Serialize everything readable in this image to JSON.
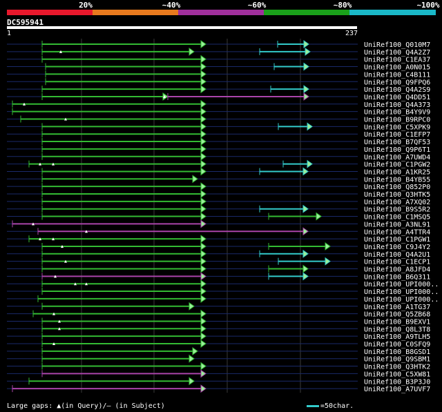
{
  "legend": [
    {
      "label": "20%",
      "color": "#e8182c"
    },
    {
      "label": "~40%",
      "color": "#e87a1e"
    },
    {
      "label": "~60%",
      "color": "#a0309c"
    },
    {
      "label": "~80%",
      "color": "#1aa01a"
    },
    {
      "label": "~100%",
      "color": "#1ab8c8"
    }
  ],
  "query": {
    "id": "DC595941",
    "start": "1",
    "end": "237"
  },
  "colors": {
    "green": "#33bb33",
    "purple": "#aa44aa",
    "cyan": "#33cccc",
    "arrow_fill": "#99ee99",
    "row_line": "#1a2a6a",
    "grid": "#3a3a3a"
  },
  "hits": [
    {
      "label": "UniRef100_Q010M7",
      "segs": [
        {
          "s": 61,
          "e": 298,
          "c": "green"
        },
        {
          "s": 402,
          "e": 447,
          "c": "cyan"
        }
      ],
      "marks": []
    },
    {
      "label": "UniRef100_Q4A2Z7",
      "segs": [
        {
          "s": 61,
          "e": 281,
          "c": "green"
        },
        {
          "s": 376,
          "e": 449,
          "c": "cyan"
        }
      ],
      "marks": [
        {
          "x": 88
        }
      ]
    },
    {
      "label": "UniRef100_C1EA37",
      "segs": [
        {
          "s": 61,
          "e": 298,
          "c": "green"
        }
      ],
      "marks": []
    },
    {
      "label": "UniRef100_A0N015",
      "segs": [
        {
          "s": 66,
          "e": 298,
          "c": "green"
        },
        {
          "s": 397,
          "e": 447,
          "c": "cyan"
        }
      ],
      "marks": []
    },
    {
      "label": "UniRef100_C4B111",
      "segs": [
        {
          "s": 66,
          "e": 298,
          "c": "green"
        }
      ],
      "marks": []
    },
    {
      "label": "UniRef100_Q9FPQ6",
      "segs": [
        {
          "s": 66,
          "e": 298,
          "c": "green"
        }
      ],
      "marks": []
    },
    {
      "label": "UniRef100_Q4A2S9",
      "segs": [
        {
          "s": 61,
          "e": 298,
          "c": "green"
        },
        {
          "s": 392,
          "e": 447,
          "c": "cyan"
        }
      ],
      "marks": []
    },
    {
      "label": "UniRef100_Q4DD51",
      "segs": [
        {
          "s": 61,
          "e": 243,
          "c": "green"
        },
        {
          "s": 243,
          "e": 447,
          "c": "purple"
        }
      ],
      "marks": [
        {
          "x": 238
        }
      ]
    },
    {
      "label": "UniRef100_Q4A373",
      "segs": [
        {
          "s": 18,
          "e": 298,
          "c": "green"
        }
      ],
      "marks": [
        {
          "x": 35
        }
      ]
    },
    {
      "label": "UniRef100_B4Y9V9",
      "segs": [
        {
          "s": 18,
          "e": 298,
          "c": "green"
        }
      ],
      "marks": []
    },
    {
      "label": "UniRef100_B9RPC0",
      "segs": [
        {
          "s": 30,
          "e": 298,
          "c": "green"
        }
      ],
      "marks": [
        {
          "x": 95
        }
      ]
    },
    {
      "label": "UniRef100_C5XPK9",
      "segs": [
        {
          "s": 61,
          "e": 298,
          "c": "green"
        },
        {
          "s": 403,
          "e": 452,
          "c": "cyan"
        }
      ],
      "marks": []
    },
    {
      "label": "UniRef100_C1EFP7",
      "segs": [
        {
          "s": 61,
          "e": 298,
          "c": "green"
        }
      ],
      "marks": []
    },
    {
      "label": "UniRef100_B7QF53",
      "segs": [
        {
          "s": 61,
          "e": 298,
          "c": "green"
        }
      ],
      "marks": []
    },
    {
      "label": "UniRef100_Q9P6T1",
      "segs": [
        {
          "s": 61,
          "e": 298,
          "c": "green"
        }
      ],
      "marks": []
    },
    {
      "label": "UniRef100_A7UWD4",
      "segs": [
        {
          "s": 61,
          "e": 298,
          "c": "green"
        }
      ],
      "marks": []
    },
    {
      "label": "UniRef100_C1PGW2",
      "segs": [
        {
          "s": 42,
          "e": 298,
          "c": "green"
        },
        {
          "s": 410,
          "e": 452,
          "c": "cyan"
        }
      ],
      "marks": [
        {
          "x": 58
        },
        {
          "x": 77
        }
      ]
    },
    {
      "label": "UniRef100_A1KR25",
      "segs": [
        {
          "s": 61,
          "e": 298,
          "c": "green"
        },
        {
          "s": 376,
          "e": 446,
          "c": "cyan"
        }
      ],
      "marks": []
    },
    {
      "label": "UniRef100_B4YB55",
      "segs": [
        {
          "s": 61,
          "e": 286,
          "c": "green"
        }
      ],
      "marks": []
    },
    {
      "label": "UniRef100_Q852P0",
      "segs": [
        {
          "s": 61,
          "e": 298,
          "c": "green"
        }
      ],
      "marks": []
    },
    {
      "label": "UniRef100_Q3HTK5",
      "segs": [
        {
          "s": 61,
          "e": 298,
          "c": "green"
        }
      ],
      "marks": []
    },
    {
      "label": "UniRef100_A7XQ02",
      "segs": [
        {
          "s": 61,
          "e": 298,
          "c": "green"
        }
      ],
      "marks": []
    },
    {
      "label": "UniRef100_B9S5R2",
      "segs": [
        {
          "s": 61,
          "e": 298,
          "c": "green"
        },
        {
          "s": 376,
          "e": 446,
          "c": "cyan"
        }
      ],
      "marks": []
    },
    {
      "label": "UniRef100_C1MSQ5",
      "segs": [
        {
          "s": 61,
          "e": 298,
          "c": "green"
        },
        {
          "s": 389,
          "e": 465,
          "c": "green"
        }
      ],
      "marks": []
    },
    {
      "label": "UniRef100_A3NL91",
      "segs": [
        {
          "s": 18,
          "e": 298,
          "c": "purple"
        }
      ],
      "marks": [
        {
          "x": 48
        }
      ]
    },
    {
      "label": "UniRef100_A4TTR4",
      "segs": [
        {
          "s": 55,
          "e": 446,
          "c": "purple"
        }
      ],
      "marks": [
        {
          "x": 125
        }
      ]
    },
    {
      "label": "UniRef100_C1PGW1",
      "segs": [
        {
          "s": 42,
          "e": 298,
          "c": "green"
        }
      ],
      "marks": [
        {
          "x": 58
        },
        {
          "x": 77
        }
      ]
    },
    {
      "label": "UniRef100_C9J4Y2",
      "segs": [
        {
          "s": 61,
          "e": 298,
          "c": "green"
        },
        {
          "s": 389,
          "e": 478,
          "c": "green"
        }
      ],
      "marks": [
        {
          "x": 90
        }
      ]
    },
    {
      "label": "UniRef100_Q4A2U1",
      "segs": [
        {
          "s": 61,
          "e": 298,
          "c": "green"
        },
        {
          "s": 376,
          "e": 446,
          "c": "cyan"
        }
      ],
      "marks": []
    },
    {
      "label": "UniRef100_C1ECP1",
      "segs": [
        {
          "s": 61,
          "e": 298,
          "c": "green"
        },
        {
          "s": 403,
          "e": 478,
          "c": "cyan"
        }
      ],
      "marks": [
        {
          "x": 95
        }
      ]
    },
    {
      "label": "UniRef100_A8JFD4",
      "segs": [
        {
          "s": 61,
          "e": 298,
          "c": "green"
        },
        {
          "s": 389,
          "e": 446,
          "c": "green"
        }
      ],
      "marks": []
    },
    {
      "label": "UniRef100_B6Q311",
      "segs": [
        {
          "s": 61,
          "e": 298,
          "c": "purple"
        },
        {
          "s": 389,
          "e": 446,
          "c": "cyan"
        }
      ],
      "marks": [
        {
          "x": 80
        }
      ]
    },
    {
      "label": "UniRef100_UPI000..",
      "segs": [
        {
          "s": 61,
          "e": 298,
          "c": "green"
        }
      ],
      "marks": [
        {
          "x": 109
        },
        {
          "x": 125
        }
      ]
    },
    {
      "label": "UniRef100_UPI000..",
      "segs": [
        {
          "s": 61,
          "e": 298,
          "c": "green"
        }
      ],
      "marks": []
    },
    {
      "label": "UniRef100_UPI000..",
      "segs": [
        {
          "s": 55,
          "e": 298,
          "c": "green"
        }
      ],
      "marks": []
    },
    {
      "label": "UniRef100_A1TG37",
      "segs": [
        {
          "s": 61,
          "e": 281,
          "c": "green"
        }
      ],
      "marks": []
    },
    {
      "label": "UniRef100_Q5ZB68",
      "segs": [
        {
          "s": 48,
          "e": 298,
          "c": "green"
        }
      ],
      "marks": [
        {
          "x": 78
        }
      ]
    },
    {
      "label": "UniRef100_B9EXV1",
      "segs": [
        {
          "s": 61,
          "e": 298,
          "c": "green"
        }
      ],
      "marks": [
        {
          "x": 86
        }
      ]
    },
    {
      "label": "UniRef100_Q8L3T8",
      "segs": [
        {
          "s": 61,
          "e": 298,
          "c": "green"
        }
      ],
      "marks": [
        {
          "x": 86
        }
      ]
    },
    {
      "label": "UniRef100_A9TLH5",
      "segs": [
        {
          "s": 61,
          "e": 298,
          "c": "green"
        }
      ],
      "marks": []
    },
    {
      "label": "UniRef100_C0SFQ9",
      "segs": [
        {
          "s": 61,
          "e": 298,
          "c": "green"
        }
      ],
      "marks": [
        {
          "x": 78
        }
      ]
    },
    {
      "label": "UniRef100_B8GSD1",
      "segs": [
        {
          "s": 61,
          "e": 286,
          "c": "green"
        }
      ],
      "marks": []
    },
    {
      "label": "UniRef100_Q9SBM1",
      "segs": [
        {
          "s": 61,
          "e": 281,
          "c": "green"
        }
      ],
      "marks": []
    },
    {
      "label": "UniRef100_Q3HTK2",
      "segs": [
        {
          "s": 61,
          "e": 298,
          "c": "green"
        }
      ],
      "marks": []
    },
    {
      "label": "UniRef100_C5XW81",
      "segs": [
        {
          "s": 61,
          "e": 298,
          "c": "purple"
        }
      ],
      "marks": []
    },
    {
      "label": "UniRef100_B3P3J0",
      "segs": [
        {
          "s": 42,
          "e": 281,
          "c": "green"
        }
      ],
      "marks": []
    },
    {
      "label": "UniRef100_A7UVF7",
      "segs": [
        {
          "s": 18,
          "e": 298,
          "c": "purple"
        }
      ],
      "marks": []
    }
  ],
  "footer": {
    "gaps_label": "Large gaps: ▲(in Query)/– (in Subject)",
    "scale_label": "=50char."
  }
}
